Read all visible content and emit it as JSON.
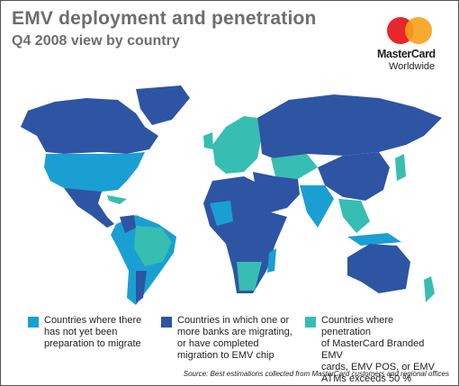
{
  "header": {
    "title": "EMV deployment and penetration",
    "subtitle": "Q4 2008 view by country"
  },
  "logo": {
    "name": "MasterCard",
    "tagline": "Worldwide"
  },
  "legend": [
    {
      "color": "#1a9fd3",
      "lines": [
        "Countries where there",
        "has not yet been",
        "preparation to migrate"
      ]
    },
    {
      "color": "#2d55a4",
      "lines": [
        "Countries in which one or",
        "more banks are migrating,",
        "or have completed",
        "migration to EMV chip"
      ]
    },
    {
      "color": "#37bdb2",
      "lines": [
        "Countries where penetration",
        "of MasterCard Branded EMV",
        "cards, EMV POS, or EMV",
        "ATMs exceeds 50 %"
      ]
    }
  ],
  "source": "Source: Best estimations collected from MasterCard customers and regional offices"
}
